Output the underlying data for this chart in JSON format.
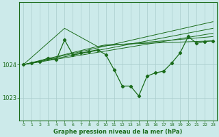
{
  "title": "Graphe pression niveau de la mer (hPa)",
  "bg_color": "#cceaea",
  "line_color": "#1a6b1a",
  "grid_color": "#aacccc",
  "x_ticks": [
    0,
    1,
    2,
    3,
    4,
    5,
    6,
    7,
    8,
    9,
    10,
    11,
    12,
    13,
    14,
    15,
    16,
    17,
    18,
    19,
    20,
    21,
    22,
    23
  ],
  "ylim": [
    1022.3,
    1025.9
  ],
  "yticks": [
    1023,
    1024
  ],
  "main_line": {
    "x": [
      0,
      1,
      2,
      3,
      4,
      5,
      6,
      7,
      8,
      9,
      10,
      11,
      12,
      13,
      14,
      15,
      16,
      17,
      18,
      19,
      20,
      21,
      22,
      23
    ],
    "y": [
      1024.0,
      1024.05,
      1024.1,
      1024.2,
      1024.15,
      1024.75,
      1024.3,
      1024.35,
      1024.4,
      1024.45,
      1024.3,
      1023.85,
      1023.35,
      1023.35,
      1023.05,
      1023.65,
      1023.75,
      1023.8,
      1024.05,
      1024.35,
      1024.85,
      1024.65,
      1024.7,
      1024.72
    ]
  },
  "forecast_lines": [
    {
      "x": [
        0,
        23
      ],
      "y": [
        1024.0,
        1025.3
      ]
    },
    {
      "x": [
        0,
        23
      ],
      "y": [
        1024.0,
        1025.1
      ]
    },
    {
      "x": [
        0,
        23
      ],
      "y": [
        1024.0,
        1024.95
      ]
    },
    {
      "x": [
        0,
        9,
        23
      ],
      "y": [
        1024.0,
        1024.55,
        1024.85
      ]
    },
    {
      "x": [
        0,
        5,
        9,
        10,
        23
      ],
      "y": [
        1024.0,
        1025.1,
        1024.55,
        1024.6,
        1024.72
      ]
    }
  ]
}
